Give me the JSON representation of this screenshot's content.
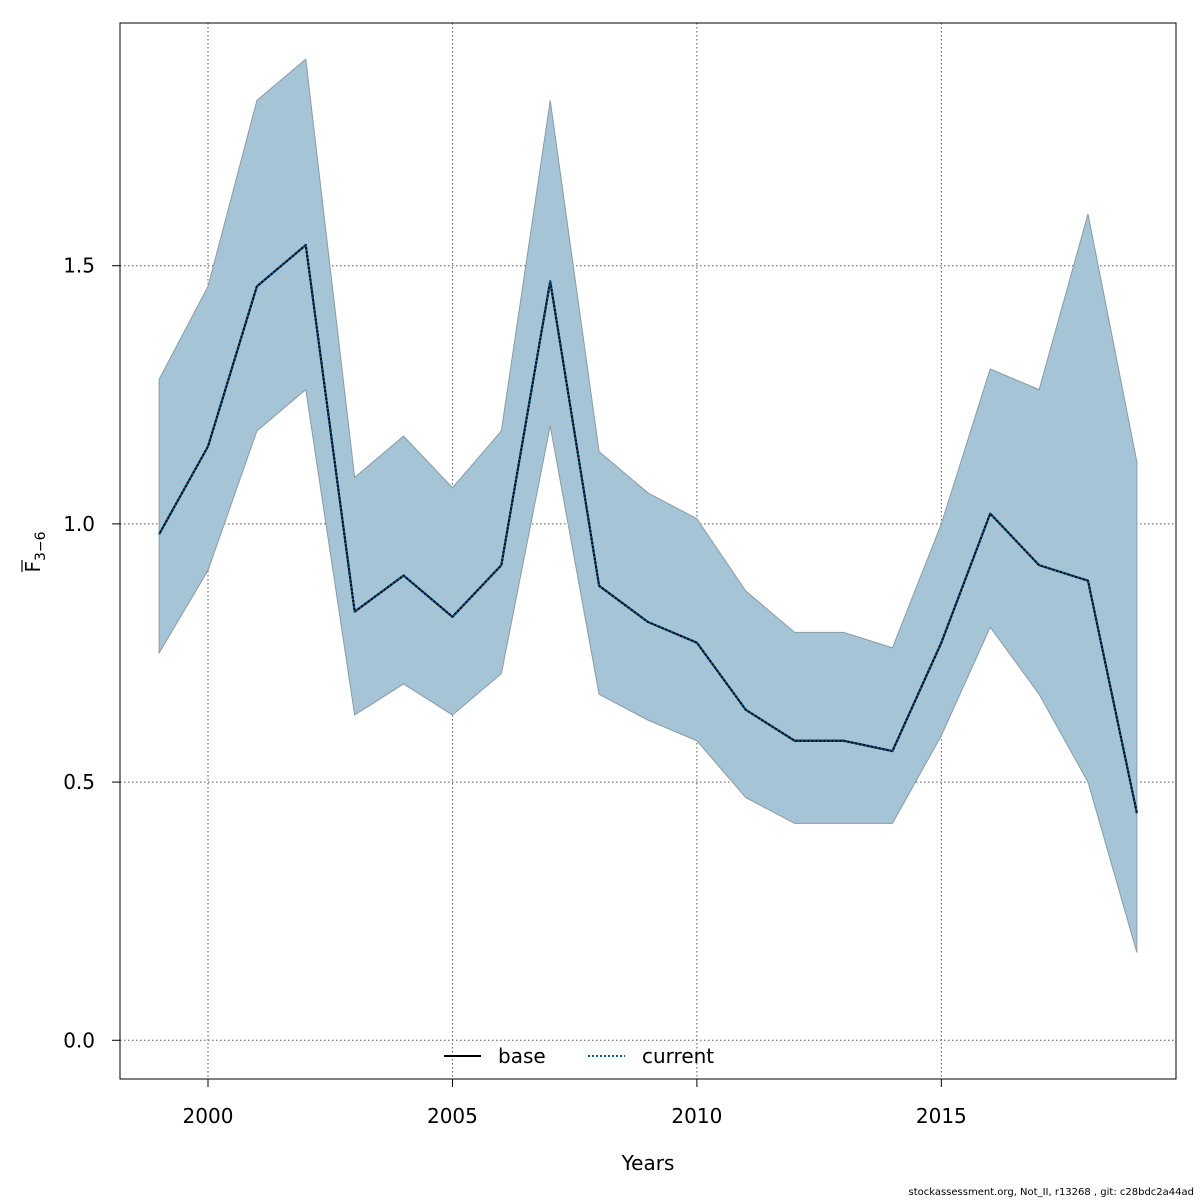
{
  "chart_data": {
    "type": "line",
    "xlabel": "Years",
    "ylabel_main": "F",
    "ylabel_sub": "3−6",
    "xlim": [
      1998.2,
      2019.8
    ],
    "ylim": [
      -0.075,
      1.97
    ],
    "xticks": [
      2000,
      2005,
      2010,
      2015
    ],
    "yticks": [
      0.0,
      0.5,
      1.0,
      1.5
    ],
    "ytick_labels": [
      "0.0",
      "0.5",
      "1.0",
      "1.5"
    ],
    "grid": true,
    "legend_position": "bottom-center",
    "x": [
      1999,
      2000,
      2001,
      2002,
      2003,
      2004,
      2005,
      2006,
      2007,
      2008,
      2009,
      2010,
      2011,
      2012,
      2013,
      2014,
      2015,
      2016,
      2017,
      2018,
      2019
    ],
    "series": [
      {
        "name": "base",
        "style": "solid",
        "color": "#000000",
        "values": [
          0.98,
          1.15,
          1.46,
          1.54,
          0.83,
          0.9,
          0.82,
          0.92,
          1.47,
          0.88,
          0.81,
          0.77,
          0.64,
          0.58,
          0.58,
          0.56,
          0.77,
          1.02,
          0.92,
          0.89,
          0.44
        ]
      },
      {
        "name": "current",
        "style": "dotted",
        "color": "#005b96",
        "values": [
          0.98,
          1.15,
          1.46,
          1.54,
          0.83,
          0.9,
          0.82,
          0.92,
          1.47,
          0.88,
          0.81,
          0.77,
          0.64,
          0.58,
          0.58,
          0.56,
          0.77,
          1.02,
          0.92,
          0.89,
          0.44
        ]
      }
    ],
    "confidence_band": {
      "color": "#a5c4d5",
      "lower": [
        0.75,
        0.91,
        1.18,
        1.26,
        0.63,
        0.69,
        0.63,
        0.71,
        1.19,
        0.67,
        0.62,
        0.58,
        0.47,
        0.42,
        0.42,
        0.42,
        0.59,
        0.8,
        0.67,
        0.5,
        0.17
      ],
      "upper": [
        1.28,
        1.46,
        1.82,
        1.9,
        1.09,
        1.17,
        1.07,
        1.18,
        1.82,
        1.14,
        1.06,
        1.01,
        0.87,
        0.79,
        0.79,
        0.76,
        1.0,
        1.3,
        1.26,
        1.6,
        1.12
      ]
    }
  },
  "footer": "stockassessment.org, Not_II, r13268 , git: c28bdc2a44ad"
}
